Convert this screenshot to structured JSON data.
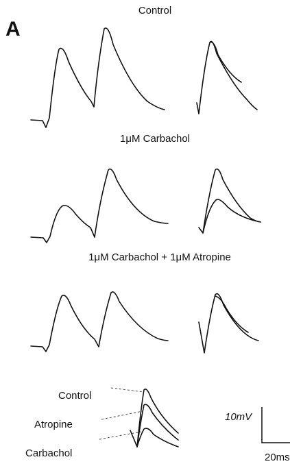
{
  "figure": {
    "panel": "A",
    "rows": [
      {
        "title": "Control"
      },
      {
        "title": "1μM Carbachol"
      },
      {
        "title": "1μM Carbachol + 1μM Atropine"
      }
    ],
    "overlay_labels": [
      "Control",
      "Atropine",
      "Carbachol"
    ],
    "scale_bar": {
      "voltage": "10mV",
      "time": "20ms"
    }
  }
}
